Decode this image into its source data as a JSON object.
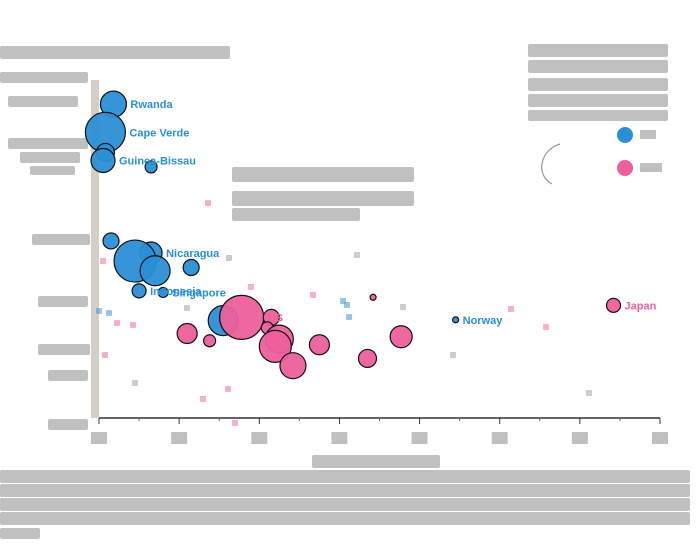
{
  "chart_data": {
    "type": "scatter",
    "xlim": [
      0,
      70
    ],
    "ylim": [
      0,
      4.2
    ],
    "xticks": [
      0,
      10,
      20,
      30,
      40,
      50,
      60,
      70
    ],
    "grid": false,
    "colors": {
      "blue": "#2a8fd6",
      "pink": "#ee5f9b",
      "grey": "#9a9a9a",
      "axis": "#d4d0c8"
    },
    "series": [
      {
        "color": "blue",
        "points": [
          {
            "label": "Rwanda",
            "x": 1.8,
            "y": 3.9,
            "size": 13
          },
          {
            "label": "Cape Verde",
            "x": 0.8,
            "y": 3.55,
            "size": 20
          },
          {
            "label": "",
            "x": 0.8,
            "y": 3.3,
            "size": 9
          },
          {
            "label": "Guinea-Bissau",
            "x": 0.5,
            "y": 3.2,
            "size": 12
          },
          {
            "label": "",
            "x": 6.5,
            "y": 3.12,
            "size": 6
          },
          {
            "label": "Nicaragua",
            "x": 6.5,
            "y": 2.05,
            "size": 11
          },
          {
            "label": "",
            "x": 4.5,
            "y": 1.95,
            "size": 21
          },
          {
            "label": "",
            "x": 7.0,
            "y": 1.83,
            "size": 15
          },
          {
            "label": "",
            "x": 11.5,
            "y": 1.87,
            "size": 8
          },
          {
            "label": "",
            "x": 1.5,
            "y": 2.2,
            "size": 8
          },
          {
            "label": "Indonesia",
            "x": 5.0,
            "y": 1.58,
            "size": 7
          },
          {
            "label": "Singapore",
            "x": 8.0,
            "y": 1.56,
            "size": 5
          },
          {
            "label": "",
            "x": 15.5,
            "y": 1.21,
            "size": 15
          },
          {
            "label": "Norway",
            "x": 44.5,
            "y": 1.22,
            "size": 3
          }
        ]
      },
      {
        "color": "pink",
        "points": [
          {
            "label": "US",
            "x": 17.8,
            "y": 1.25,
            "size": 22
          },
          {
            "label": "",
            "x": 21.5,
            "y": 1.25,
            "size": 8
          },
          {
            "label": "",
            "x": 21.0,
            "y": 1.12,
            "size": 6
          },
          {
            "label": "",
            "x": 22.5,
            "y": 0.98,
            "size": 14
          },
          {
            "label": "",
            "x": 22.0,
            "y": 0.89,
            "size": 16
          },
          {
            "label": "",
            "x": 27.5,
            "y": 0.91,
            "size": 10
          },
          {
            "label": "",
            "x": 11.0,
            "y": 1.05,
            "size": 10
          },
          {
            "label": "",
            "x": 13.8,
            "y": 0.96,
            "size": 6
          },
          {
            "label": "",
            "x": 24.2,
            "y": 0.65,
            "size": 13
          },
          {
            "label": "",
            "x": 33.5,
            "y": 0.74,
            "size": 9
          },
          {
            "label": "",
            "x": 37.7,
            "y": 1.01,
            "size": 11
          },
          {
            "label": "",
            "x": 34.2,
            "y": 1.5,
            "size": 3
          },
          {
            "label": "Japan",
            "x": 64.2,
            "y": 1.4,
            "size": 7
          }
        ]
      }
    ]
  }
}
